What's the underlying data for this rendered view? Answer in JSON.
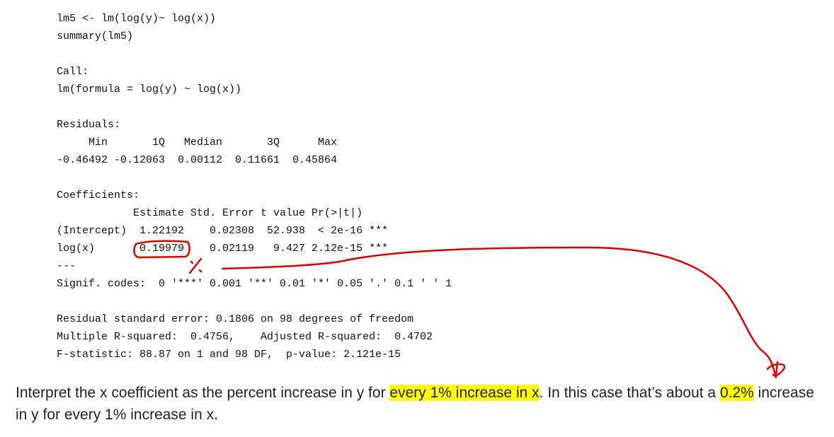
{
  "code": {
    "blocks": [
      [
        "lm5 <- lm(log(y)~ log(x))",
        "summary(lm5)"
      ],
      [
        "Call:",
        "lm(formula = log(y) ~ log(x))"
      ],
      [
        "Residuals:",
        "     Min       1Q   Median       3Q      Max",
        "-0.46492 -0.12063  0.00112  0.11661  0.45864"
      ],
      [
        "Coefficients:",
        "            Estimate Std. Error t value Pr(>|t|)",
        "(Intercept)  1.22192    0.02308  52.938  < 2e-16 ***",
        "log(x)       0.19979    0.02119   9.427 2.12e-15 ***",
        "---",
        "Signif. codes:  0 '***' 0.001 '**' 0.01 '*' 0.05 '.' 0.1 ' ' 1"
      ],
      [
        "Residual standard error: 0.1806 on 98 degrees of freedom",
        "Multiple R-squared:  0.4756,    Adjusted R-squared:  0.4702",
        "F-statistic: 88.87 on 1 and 98 DF,  p-value: 2.121e-15"
      ]
    ]
  },
  "paragraph": {
    "segments": [
      {
        "text": "Interpret the x coefficient as the percent increase in y for ",
        "highlight": false
      },
      {
        "text": "every 1% increase in x",
        "highlight": true
      },
      {
        "text": ". In this case that’s about a ",
        "highlight": false
      },
      {
        "text": "0.2%",
        "highlight": true
      },
      {
        "text": " increase in y for every 1% increase in x.",
        "highlight": false
      }
    ]
  }
}
